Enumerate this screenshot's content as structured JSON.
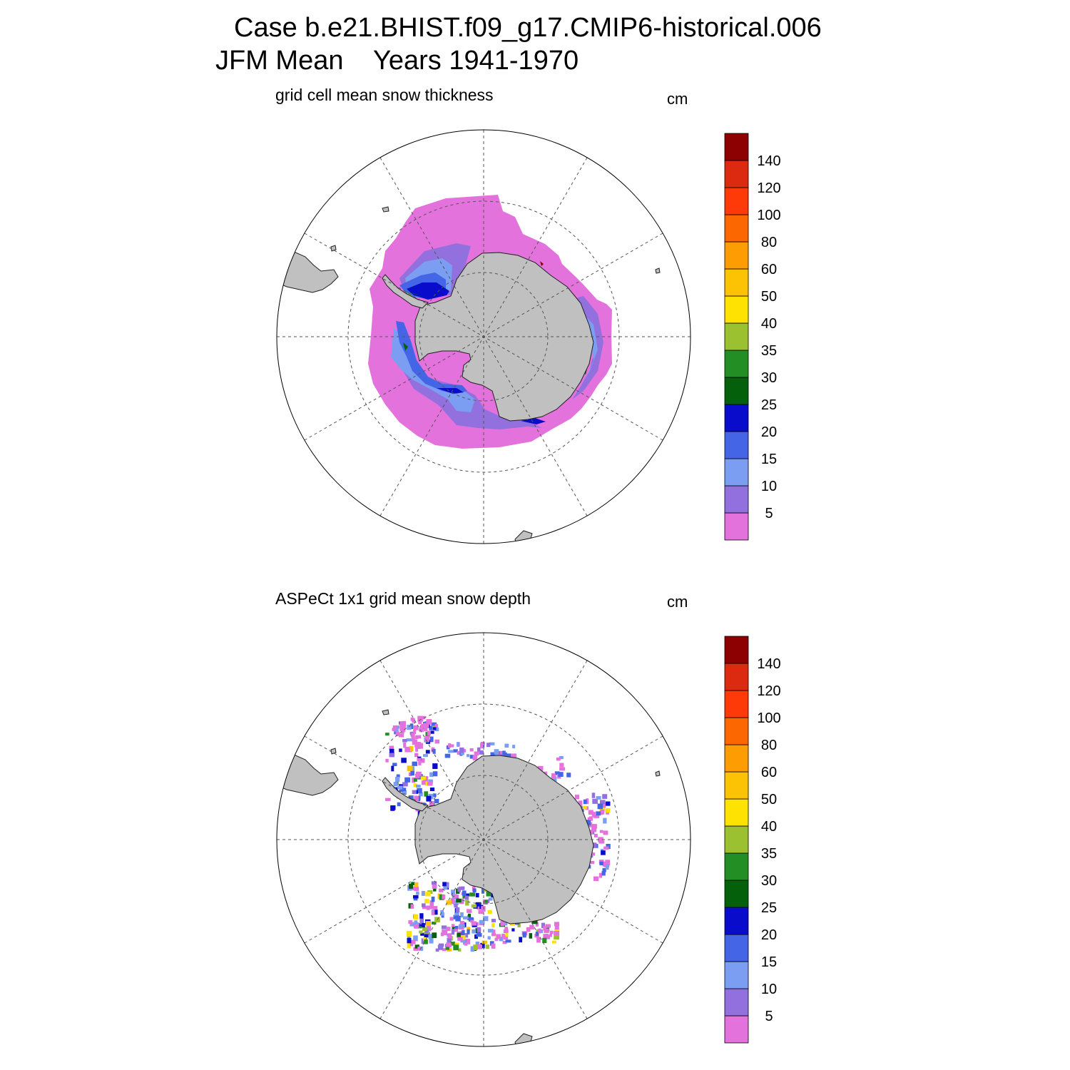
{
  "title": {
    "case_label": "Case b.e21.BHIST.f09_g17.CMIP6-historical.006",
    "season": "JFM Mean",
    "years": "Years 1941-1970"
  },
  "panels": [
    {
      "title": "grid cell mean snow thickness",
      "units": "cm",
      "field": "model"
    },
    {
      "title": "ASPeCt 1x1 grid mean snow depth",
      "units": "cm",
      "field": "observations"
    }
  ],
  "colorbar": {
    "levels": [
      "5",
      "10",
      "15",
      "20",
      "25",
      "30",
      "35",
      "40",
      "50",
      "60",
      "80",
      "100",
      "120",
      "140"
    ],
    "colors": [
      "#e472dc",
      "#9270de",
      "#7b9ef2",
      "#4466e6",
      "#0a0ccc",
      "#04600a",
      "#238e24",
      "#9bc131",
      "#fee302",
      "#fcc305",
      "#fe9c03",
      "#fd6702",
      "#fe3b08",
      "#dc2a11",
      "#8e0102"
    ]
  },
  "map_colors": {
    "land": "#c0c0c0",
    "ocean": "#ffffff",
    "coast": "#202020"
  }
}
